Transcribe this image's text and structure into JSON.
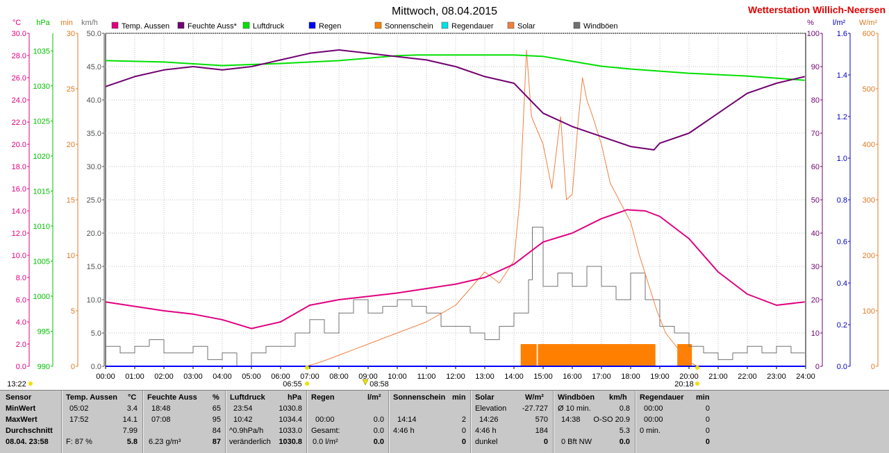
{
  "header": {
    "title": "Mittwoch, 08.04.2015",
    "station": "Wetterstation Willich-Neersen"
  },
  "axis_units": {
    "temp": "°C",
    "pressure": "hPa",
    "minutes": "min",
    "wind": "km/h",
    "humidity": "%",
    "rain": "l/m²",
    "solar": "W/m²"
  },
  "colors": {
    "temp": "#e0007f",
    "humidity": "#700070",
    "pressure": "#00e000",
    "rain": "#0000ff",
    "sunshine": "#ff8000",
    "rainduration": "#00e0e0",
    "solar": "#f08040",
    "wind": "#707070",
    "minutes": "#e07820",
    "windaxis": "#707070"
  },
  "legend": [
    {
      "label": "Temp. Aussen",
      "color": "#e0007f"
    },
    {
      "label": "Feuchte Auss*",
      "color": "#700070"
    },
    {
      "label": "Luftdruck",
      "color": "#00e000"
    },
    {
      "label": "Regen",
      "color": "#0000ff"
    },
    {
      "label": "Sonnenschein",
      "color": "#ff8000"
    },
    {
      "label": "Regendauer",
      "color": "#00e0e0"
    },
    {
      "label": "Solar",
      "color": "#f08040"
    },
    {
      "label": "Windböen",
      "color": "#707070"
    }
  ],
  "markers": {
    "now": "13:22",
    "sunrise": "06:55",
    "noon": "08:58",
    "sunset": "20:18"
  },
  "chart_data": {
    "type": "line",
    "x_label_times": [
      "00:00",
      "01:00",
      "02:00",
      "03:00",
      "04:00",
      "05:00",
      "06:00",
      "07:00",
      "08:00",
      "09:00",
      "10:00",
      "11:00",
      "12:00",
      "13:00",
      "14:00",
      "15:00",
      "16:00",
      "17:00",
      "18:00",
      "19:00",
      "20:00",
      "21:00",
      "22:00",
      "23:00",
      "24:00"
    ],
    "axes": {
      "temp": {
        "min": 0,
        "max": 30,
        "ticks": [
          "0.0",
          "2.0",
          "4.0",
          "6.0",
          "8.0",
          "10.0",
          "12.0",
          "14.0",
          "16.0",
          "18.0",
          "20.0",
          "22.0",
          "24.0",
          "26.0",
          "28.0",
          "30.0"
        ]
      },
      "pressure": {
        "min": 990,
        "max": 1037.5,
        "ticks": [
          "990",
          "995",
          "1000",
          "1005",
          "1010",
          "1015",
          "1020",
          "1025",
          "1030",
          "1035"
        ]
      },
      "minutes": {
        "min": 0,
        "max": 30,
        "ticks": [
          "0",
          "5",
          "10",
          "15",
          "20",
          "25",
          "30"
        ]
      },
      "wind": {
        "min": 0,
        "max": 50,
        "ticks": [
          "0.0",
          "5.0",
          "10.0",
          "15.0",
          "20.0",
          "25.0",
          "30.0",
          "35.0",
          "40.0",
          "45.0",
          "50.0"
        ]
      },
      "humidity": {
        "min": 0,
        "max": 100,
        "ticks": [
          "0",
          "10",
          "20",
          "30",
          "40",
          "50",
          "60",
          "70",
          "80",
          "90",
          "100"
        ]
      },
      "rain": {
        "min": 0,
        "max": 1.6,
        "ticks": [
          "0.0",
          "0.2",
          "0.4",
          "0.6",
          "0.8",
          "1.0",
          "1.2",
          "1.4",
          "1.6"
        ]
      },
      "solar": {
        "min": 0,
        "max": 600,
        "ticks": [
          "0",
          "100",
          "200",
          "300",
          "400",
          "500",
          "600"
        ]
      }
    },
    "series": [
      {
        "name": "Temp. Aussen",
        "axis": "temp",
        "points": [
          [
            0,
            5.8
          ],
          [
            1,
            5.4
          ],
          [
            2,
            5.0
          ],
          [
            3,
            4.7
          ],
          [
            4,
            4.2
          ],
          [
            5,
            3.4
          ],
          [
            6,
            4.0
          ],
          [
            7,
            5.5
          ],
          [
            8,
            6.0
          ],
          [
            9,
            6.3
          ],
          [
            10,
            6.6
          ],
          [
            11,
            7.0
          ],
          [
            12,
            7.4
          ],
          [
            13,
            8.0
          ],
          [
            14,
            9.2
          ],
          [
            15,
            11.2
          ],
          [
            16,
            12.0
          ],
          [
            17,
            13.3
          ],
          [
            17.87,
            14.1
          ],
          [
            18.5,
            14.0
          ],
          [
            19,
            13.5
          ],
          [
            20,
            11.5
          ],
          [
            21,
            8.5
          ],
          [
            22,
            6.5
          ],
          [
            23,
            5.5
          ],
          [
            23.97,
            5.8
          ]
        ]
      },
      {
        "name": "Feuchte Auss*",
        "axis": "humidity",
        "points": [
          [
            0,
            84
          ],
          [
            1,
            87
          ],
          [
            2,
            89
          ],
          [
            3,
            90
          ],
          [
            4,
            89
          ],
          [
            5,
            90
          ],
          [
            6,
            92
          ],
          [
            7,
            94
          ],
          [
            8,
            95
          ],
          [
            9,
            94
          ],
          [
            10,
            93
          ],
          [
            11,
            92
          ],
          [
            12,
            90
          ],
          [
            13,
            87
          ],
          [
            14,
            85
          ],
          [
            15,
            76
          ],
          [
            16,
            72
          ],
          [
            17,
            69
          ],
          [
            18,
            66
          ],
          [
            18.8,
            65
          ],
          [
            19,
            67
          ],
          [
            20,
            70
          ],
          [
            21,
            76
          ],
          [
            22,
            82
          ],
          [
            23,
            85
          ],
          [
            23.97,
            87
          ]
        ]
      },
      {
        "name": "Luftdruck",
        "axis": "pressure",
        "points": [
          [
            0,
            1033.6
          ],
          [
            2,
            1033.4
          ],
          [
            4,
            1032.9
          ],
          [
            6,
            1033.2
          ],
          [
            8,
            1033.6
          ],
          [
            10,
            1034.3
          ],
          [
            10.7,
            1034.4
          ],
          [
            12,
            1034.4
          ],
          [
            14,
            1034.4
          ],
          [
            15,
            1034.2
          ],
          [
            16,
            1033.5
          ],
          [
            17,
            1032.8
          ],
          [
            18,
            1032.4
          ],
          [
            20,
            1031.8
          ],
          [
            22,
            1031.4
          ],
          [
            23.97,
            1030.8
          ]
        ]
      },
      {
        "name": "Regen",
        "axis": "rain",
        "points": [
          [
            0,
            0
          ],
          [
            23.97,
            0
          ]
        ]
      },
      {
        "name": "Solar",
        "axis": "solar",
        "points": [
          [
            6.9,
            0
          ],
          [
            7.5,
            10
          ],
          [
            8,
            20
          ],
          [
            9,
            40
          ],
          [
            10,
            60
          ],
          [
            11,
            80
          ],
          [
            12,
            110
          ],
          [
            12.5,
            140
          ],
          [
            13,
            170
          ],
          [
            13.5,
            150
          ],
          [
            14,
            190
          ],
          [
            14.2,
            300
          ],
          [
            14.43,
            570
          ],
          [
            14.6,
            450
          ],
          [
            15,
            400
          ],
          [
            15.3,
            320
          ],
          [
            15.6,
            450
          ],
          [
            15.8,
            300
          ],
          [
            16,
            310
          ],
          [
            16.2,
            440
          ],
          [
            16.35,
            520
          ],
          [
            16.5,
            480
          ],
          [
            16.7,
            450
          ],
          [
            17,
            400
          ],
          [
            17.3,
            330
          ],
          [
            17.6,
            300
          ],
          [
            18,
            260
          ],
          [
            18.3,
            200
          ],
          [
            18.6,
            150
          ],
          [
            18.9,
            100
          ],
          [
            19.2,
            60
          ],
          [
            19.5,
            40
          ],
          [
            19.8,
            20
          ],
          [
            20.1,
            5
          ],
          [
            20.3,
            0
          ]
        ]
      },
      {
        "name": "Windböen",
        "axis": "wind",
        "points": [
          [
            0,
            3
          ],
          [
            0.5,
            2
          ],
          [
            1,
            3
          ],
          [
            1.5,
            4
          ],
          [
            2,
            2
          ],
          [
            2.5,
            2
          ],
          [
            3,
            3
          ],
          [
            3.5,
            1
          ],
          [
            4,
            2
          ],
          [
            4.5,
            0
          ],
          [
            5,
            2
          ],
          [
            5.5,
            3
          ],
          [
            6,
            3
          ],
          [
            6.5,
            5
          ],
          [
            7,
            7
          ],
          [
            7.5,
            5
          ],
          [
            8,
            8
          ],
          [
            8.5,
            10
          ],
          [
            9,
            8
          ],
          [
            9.5,
            9
          ],
          [
            10,
            10
          ],
          [
            10.5,
            9
          ],
          [
            11,
            8
          ],
          [
            11.5,
            6
          ],
          [
            12,
            6
          ],
          [
            12.5,
            5
          ],
          [
            13,
            4
          ],
          [
            13.5,
            6
          ],
          [
            14,
            8
          ],
          [
            14.5,
            13
          ],
          [
            14.63,
            20.9
          ],
          [
            15,
            12
          ],
          [
            15.5,
            14
          ],
          [
            16,
            12
          ],
          [
            16.5,
            15
          ],
          [
            17,
            12
          ],
          [
            17.5,
            10
          ],
          [
            18,
            14
          ],
          [
            18.5,
            10
          ],
          [
            19,
            6
          ],
          [
            19.5,
            5
          ],
          [
            20,
            3
          ],
          [
            20.5,
            2
          ],
          [
            21,
            1
          ],
          [
            21.5,
            2
          ],
          [
            22,
            3
          ],
          [
            22.5,
            2
          ],
          [
            23,
            3
          ],
          [
            23.5,
            2
          ],
          [
            23.97,
            2
          ]
        ]
      }
    ],
    "sunshine_bars": [
      [
        14.23,
        14.78
      ],
      [
        14.82,
        18.85
      ],
      [
        19.6,
        20.1
      ]
    ],
    "sunshine_bar_minutes": 2
  },
  "table": {
    "headers": {
      "sensor": "Sensor",
      "temp": "Temp. Aussen",
      "temp_u": "°C",
      "hum": "Feuchte Auss",
      "hum_u": "%",
      "press": "Luftdruck",
      "press_u": "hPa",
      "rain": "Regen",
      "rain_u": "l/m²",
      "sun": "Sonnenschein",
      "sun_u": "min",
      "solar": "Solar",
      "solar_u": "W/m²",
      "wind": "Windböen",
      "wind_u": "km/h",
      "rdur": "Regendauer",
      "rdur_u": "min"
    },
    "rowlabels": [
      "MinWert",
      "MaxWert",
      "Durchschnitt",
      "08.04. 23:58"
    ],
    "temp": {
      "min_t": "05:02",
      "min_v": "3.4",
      "max_t": "17:52",
      "max_v": "14.1",
      "avg": "7.99",
      "cur_label": "F: 87 %",
      "cur": "5.8"
    },
    "hum": {
      "min_t": "18:48",
      "min_v": "65",
      "max_t": "07:08",
      "max_v": "95",
      "avg": "84",
      "cur_label": "6.23 g/m³",
      "cur": "87"
    },
    "press": {
      "min_t": "23:54",
      "min_v": "1030.8",
      "max_t": "10:42",
      "max_v": "1034.4",
      "avg_label": "^0.9hPa/h",
      "avg": "1033.0",
      "cur_label": "veränderlich",
      "cur": "1030.8"
    },
    "rain": {
      "max_t": "00:00",
      "max_v": "0.0",
      "avg_label": "Gesamt:",
      "avg": "0.0",
      "cur_label": "0.0 l/m²",
      "cur": "0.0"
    },
    "sun": {
      "max_t": "14:14",
      "max_v": "2",
      "avg_label": "4:46 h",
      "avg": "0",
      "cur": "0"
    },
    "solar": {
      "min_t": "Elevation",
      "min_v": "-27.727",
      "max_t": "14:26",
      "max_v": "570",
      "avg_label": "4:46 h",
      "avg": "184",
      "cur_label": "dunkel",
      "cur": "0"
    },
    "wind": {
      "min_t": "Ø 10 min.",
      "min_v": "0.8",
      "max_t": "14:38",
      "max_v": "O-SO 20.9",
      "avg": "5.3",
      "cur_label": "0 Bft NW",
      "cur": "0.0"
    },
    "rdur": {
      "min_t": "00:00",
      "min_v": "0",
      "max_t": "00:00",
      "max_v": "0",
      "avg_label": "0 min.",
      "avg": "0",
      "cur": "0"
    }
  }
}
